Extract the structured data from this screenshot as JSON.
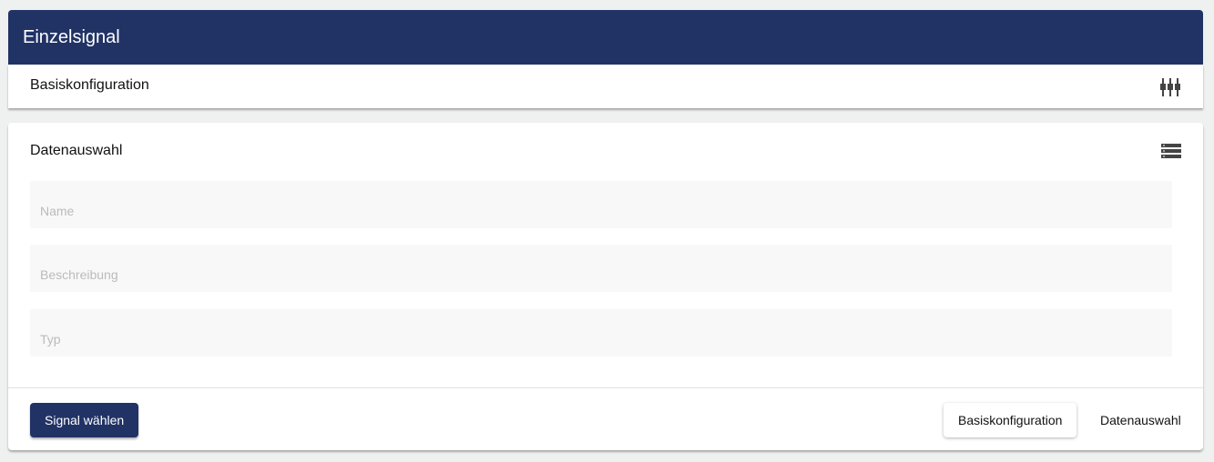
{
  "header": {
    "title": "Einzelsignal"
  },
  "basis": {
    "title": "Basiskonfiguration",
    "icon": "sliders-icon"
  },
  "daten": {
    "title": "Datenauswahl",
    "icon": "list-icon",
    "fields": [
      {
        "placeholder": "Name"
      },
      {
        "placeholder": "Beschreibung"
      },
      {
        "placeholder": "Typ"
      }
    ]
  },
  "footer": {
    "primary": "Signal wählen",
    "secondary": "Basiskonfiguration",
    "text": "Datenauswahl"
  }
}
